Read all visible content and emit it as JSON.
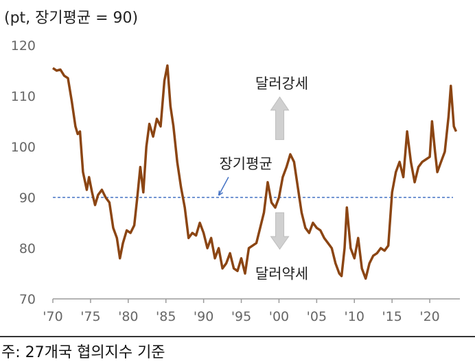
{
  "unit_note": "(pt, 장기평균 = 90)",
  "footnote": "주: 27개국 협의지수 기준",
  "colors": {
    "series": "#8B4513",
    "average": "#4472C4",
    "arrow": "#D0D0D0",
    "axis": "#9a9a9a"
  },
  "chart_data": {
    "type": "line",
    "title": "",
    "xlabel": "",
    "ylabel": "",
    "ylim": [
      70,
      120
    ],
    "xlim": [
      1970,
      2024
    ],
    "yticks": [
      70,
      80,
      90,
      100,
      110,
      120
    ],
    "xticks": [
      {
        "year": 1970,
        "label": "'70"
      },
      {
        "year": 1975,
        "label": "'75"
      },
      {
        "year": 1980,
        "label": "'80"
      },
      {
        "year": 1985,
        "label": "'85"
      },
      {
        "year": 1990,
        "label": "'90"
      },
      {
        "year": 1995,
        "label": "'95"
      },
      {
        "year": 2000,
        "label": "'00"
      },
      {
        "year": 2005,
        "label": "'05"
      },
      {
        "year": 2010,
        "label": "'10"
      },
      {
        "year": 2015,
        "label": "'15"
      },
      {
        "year": 2020,
        "label": "'20"
      }
    ],
    "grid": false,
    "reference_line": {
      "value": 90,
      "label": "장기평균",
      "style": "dashed"
    },
    "annotations": {
      "up": "달러강세",
      "down": "달러약세"
    },
    "series": [
      {
        "points": [
          [
            1970.0,
            115.5
          ],
          [
            1970.5,
            115.0
          ],
          [
            1971.0,
            115.2
          ],
          [
            1971.5,
            114.0
          ],
          [
            1972.0,
            113.5
          ],
          [
            1972.5,
            109.0
          ],
          [
            1973.0,
            104.0
          ],
          [
            1973.3,
            102.5
          ],
          [
            1973.6,
            103.0
          ],
          [
            1974.0,
            95.0
          ],
          [
            1974.5,
            91.5
          ],
          [
            1974.8,
            94.0
          ],
          [
            1975.2,
            91.0
          ],
          [
            1975.6,
            88.5
          ],
          [
            1976.0,
            90.5
          ],
          [
            1976.5,
            91.5
          ],
          [
            1977.0,
            90.0
          ],
          [
            1977.5,
            89.0
          ],
          [
            1978.0,
            84.0
          ],
          [
            1978.5,
            82.0
          ],
          [
            1978.9,
            78.0
          ],
          [
            1979.3,
            81.0
          ],
          [
            1979.8,
            83.5
          ],
          [
            1980.3,
            83.0
          ],
          [
            1980.8,
            84.5
          ],
          [
            1981.2,
            90.0
          ],
          [
            1981.6,
            96.0
          ],
          [
            1982.0,
            91.0
          ],
          [
            1982.4,
            100.0
          ],
          [
            1982.8,
            104.5
          ],
          [
            1983.3,
            102.0
          ],
          [
            1983.8,
            105.5
          ],
          [
            1984.3,
            104.0
          ],
          [
            1984.8,
            113.0
          ],
          [
            1985.2,
            116.0
          ],
          [
            1985.6,
            108.0
          ],
          [
            1986.0,
            104.0
          ],
          [
            1986.5,
            97.0
          ],
          [
            1987.0,
            92.0
          ],
          [
            1987.5,
            88.0
          ],
          [
            1988.0,
            82.0
          ],
          [
            1988.5,
            83.0
          ],
          [
            1989.0,
            82.5
          ],
          [
            1989.5,
            85.0
          ],
          [
            1990.0,
            83.0
          ],
          [
            1990.5,
            80.0
          ],
          [
            1991.0,
            82.0
          ],
          [
            1991.5,
            78.0
          ],
          [
            1992.0,
            80.0
          ],
          [
            1992.5,
            76.0
          ],
          [
            1993.0,
            77.0
          ],
          [
            1993.5,
            79.0
          ],
          [
            1994.0,
            76.0
          ],
          [
            1994.5,
            75.5
          ],
          [
            1995.0,
            78.0
          ],
          [
            1995.5,
            75.0
          ],
          [
            1996.0,
            80.0
          ],
          [
            1996.5,
            80.5
          ],
          [
            1997.0,
            81.0
          ],
          [
            1997.5,
            84.0
          ],
          [
            1998.0,
            87.0
          ],
          [
            1998.5,
            93.0
          ],
          [
            1999.0,
            89.0
          ],
          [
            1999.5,
            88.0
          ],
          [
            2000.0,
            90.0
          ],
          [
            2000.5,
            94.0
          ],
          [
            2001.0,
            96.0
          ],
          [
            2001.5,
            98.5
          ],
          [
            2002.0,
            97.0
          ],
          [
            2002.5,
            92.0
          ],
          [
            2003.0,
            87.0
          ],
          [
            2003.5,
            84.0
          ],
          [
            2004.0,
            83.0
          ],
          [
            2004.5,
            85.0
          ],
          [
            2005.0,
            84.0
          ],
          [
            2005.5,
            83.5
          ],
          [
            2006.0,
            82.0
          ],
          [
            2006.5,
            81.0
          ],
          [
            2007.0,
            80.0
          ],
          [
            2007.5,
            77.0
          ],
          [
            2008.0,
            75.0
          ],
          [
            2008.3,
            74.5
          ],
          [
            2008.7,
            80.0
          ],
          [
            2009.0,
            88.0
          ],
          [
            2009.5,
            80.0
          ],
          [
            2010.0,
            78.0
          ],
          [
            2010.5,
            82.0
          ],
          [
            2011.0,
            76.0
          ],
          [
            2011.5,
            74.0
          ],
          [
            2012.0,
            77.0
          ],
          [
            2012.5,
            78.5
          ],
          [
            2013.0,
            79.0
          ],
          [
            2013.5,
            80.0
          ],
          [
            2014.0,
            79.5
          ],
          [
            2014.5,
            80.5
          ],
          [
            2015.0,
            91.0
          ],
          [
            2015.5,
            95.0
          ],
          [
            2016.0,
            97.0
          ],
          [
            2016.5,
            94.0
          ],
          [
            2017.0,
            103.0
          ],
          [
            2017.5,
            97.0
          ],
          [
            2018.0,
            93.0
          ],
          [
            2018.5,
            96.0
          ],
          [
            2019.0,
            97.0
          ],
          [
            2019.5,
            97.5
          ],
          [
            2020.0,
            98.0
          ],
          [
            2020.3,
            105.0
          ],
          [
            2020.7,
            99.0
          ],
          [
            2021.0,
            95.0
          ],
          [
            2021.5,
            97.0
          ],
          [
            2022.0,
            99.0
          ],
          [
            2022.5,
            106.0
          ],
          [
            2022.8,
            112.0
          ],
          [
            2023.2,
            104.0
          ],
          [
            2023.5,
            103.0
          ]
        ]
      }
    ]
  }
}
